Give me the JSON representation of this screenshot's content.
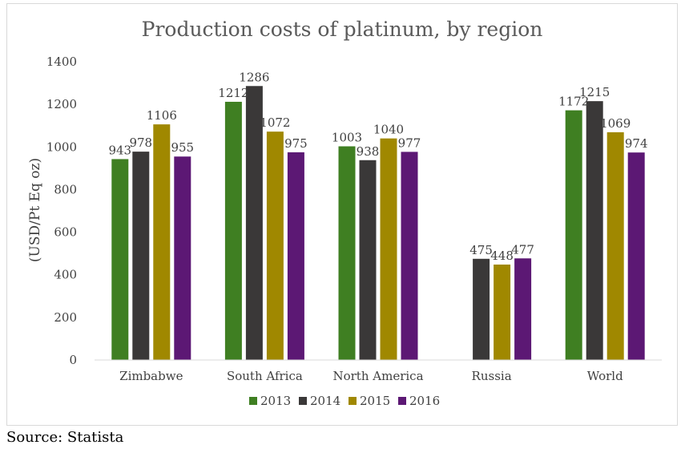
{
  "source": "Source: Statista",
  "chart_data": {
    "type": "bar",
    "title": "Production costs of platinum, by region",
    "xlabel": "",
    "ylabel": "(USD/Pt Eq oz)",
    "ylim": [
      0,
      1400
    ],
    "yticks": [
      0,
      200,
      400,
      600,
      800,
      1000,
      1200,
      1400
    ],
    "grid": false,
    "legend_position": "bottom",
    "categories": [
      "Zimbabwe",
      "South Africa",
      "North America",
      "Russia",
      "World"
    ],
    "series": [
      {
        "name": "2013",
        "color": "#3f7f22",
        "values": [
          943,
          1212,
          1003,
          null,
          1172
        ]
      },
      {
        "name": "2014",
        "color": "#3a3838",
        "values": [
          978,
          1286,
          938,
          475,
          1215
        ]
      },
      {
        "name": "2015",
        "color": "#a08800",
        "values": [
          1106,
          1072,
          1040,
          448,
          1069
        ]
      },
      {
        "name": "2016",
        "color": "#5c1874",
        "values": [
          955,
          975,
          977,
          477,
          974
        ]
      }
    ]
  }
}
